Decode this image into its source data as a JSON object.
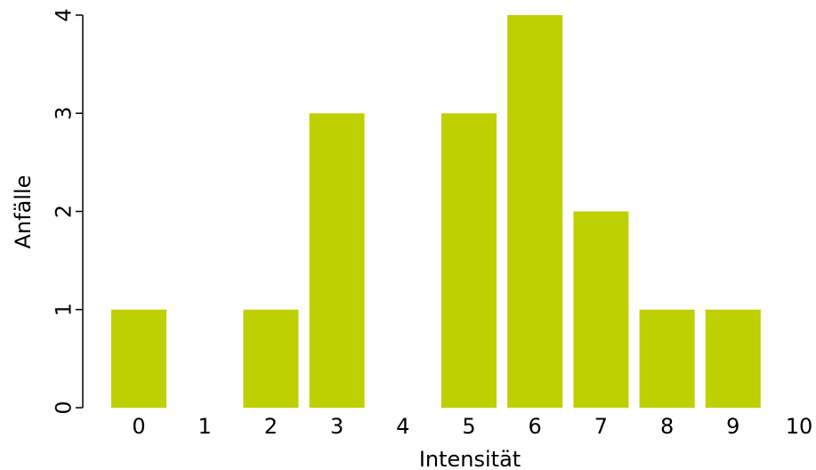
{
  "chart_data": {
    "type": "bar",
    "xlabel": "Intensität",
    "ylabel": "Anfälle",
    "categories": [
      "0",
      "1",
      "2",
      "3",
      "4",
      "5",
      "6",
      "7",
      "8",
      "9",
      "10"
    ],
    "values": [
      1,
      0,
      1,
      3,
      0,
      3,
      4,
      2,
      1,
      1,
      0
    ],
    "yticks": [
      "0",
      "1",
      "2",
      "3",
      "4"
    ],
    "ylim": [
      0,
      4
    ],
    "bar_color": "#bfd000",
    "grid": false,
    "legend": "none"
  }
}
